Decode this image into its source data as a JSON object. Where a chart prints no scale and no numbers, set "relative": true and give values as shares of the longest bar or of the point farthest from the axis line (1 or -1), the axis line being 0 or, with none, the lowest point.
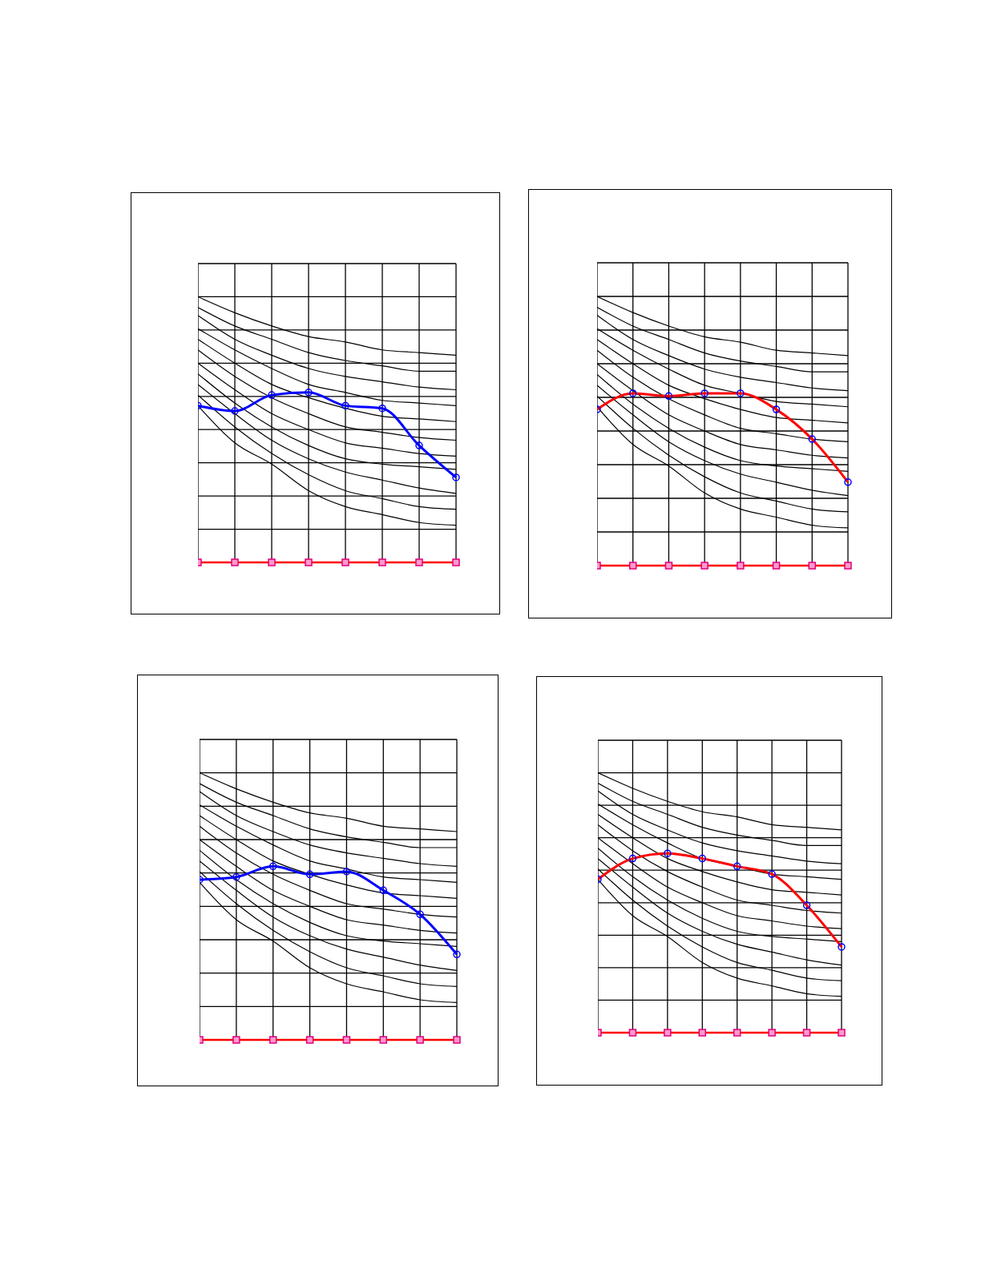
{
  "chart_data": [
    {
      "type": "line",
      "relative": true,
      "grid": true,
      "line_style": "solid",
      "categories": [
        null,
        null,
        null,
        null,
        null,
        null,
        null,
        null
      ],
      "series": [
        {
          "color": "#000000",
          "marker": "none",
          "values": [
            1.0,
            0.94,
            0.89,
            0.85,
            0.83,
            0.8,
            0.79,
            0.78
          ]
        },
        {
          "color": "#000000",
          "marker": "none",
          "values": [
            0.96,
            0.89,
            0.84,
            0.79,
            0.76,
            0.74,
            0.72,
            0.72
          ]
        },
        {
          "color": "#000000",
          "marker": "none",
          "values": [
            0.93,
            0.84,
            0.78,
            0.73,
            0.7,
            0.68,
            0.66,
            0.65
          ]
        },
        {
          "color": "#000000",
          "marker": "none",
          "values": [
            0.88,
            0.8,
            0.73,
            0.67,
            0.64,
            0.61,
            0.6,
            0.59
          ]
        },
        {
          "color": "#000000",
          "marker": "none",
          "values": [
            0.84,
            0.75,
            0.67,
            0.62,
            0.58,
            0.55,
            0.54,
            0.53
          ]
        },
        {
          "color": "#000000",
          "marker": "none",
          "values": [
            0.8,
            0.7,
            0.62,
            0.56,
            0.51,
            0.49,
            0.47,
            0.46
          ]
        },
        {
          "color": "#000000",
          "marker": "none",
          "values": [
            0.75,
            0.65,
            0.56,
            0.5,
            0.45,
            0.43,
            0.41,
            0.4
          ]
        },
        {
          "color": "#000000",
          "marker": "none",
          "values": [
            0.71,
            0.6,
            0.51,
            0.44,
            0.39,
            0.37,
            0.36,
            0.35
          ]
        },
        {
          "color": "#000000",
          "marker": "none",
          "values": [
            0.67,
            0.56,
            0.46,
            0.39,
            0.34,
            0.31,
            0.28,
            0.26
          ]
        },
        {
          "color": "#000000",
          "marker": "none",
          "values": [
            0.63,
            0.51,
            0.41,
            0.33,
            0.27,
            0.24,
            0.21,
            0.2
          ]
        },
        {
          "color": "#000000",
          "marker": "none",
          "values": [
            0.59,
            0.45,
            0.37,
            0.27,
            0.21,
            0.18,
            0.15,
            0.14
          ]
        },
        {
          "color": "#ff0000",
          "marker": "square",
          "values": [
            0,
            0,
            0,
            0,
            0,
            0,
            0,
            0
          ]
        },
        {
          "color": "#0000ff",
          "marker": "circle",
          "values": [
            0.59,
            0.57,
            0.63,
            0.64,
            0.59,
            0.58,
            0.44,
            0.32
          ]
        }
      ]
    },
    {
      "type": "line",
      "relative": true,
      "grid": true,
      "line_style": "solid",
      "categories": [
        null,
        null,
        null,
        null,
        null,
        null,
        null,
        null
      ],
      "series": [
        {
          "color": "#000000",
          "marker": "none",
          "values": [
            1.0,
            0.94,
            0.89,
            0.85,
            0.83,
            0.8,
            0.79,
            0.78
          ]
        },
        {
          "color": "#000000",
          "marker": "none",
          "values": [
            0.96,
            0.89,
            0.84,
            0.79,
            0.76,
            0.74,
            0.72,
            0.72
          ]
        },
        {
          "color": "#000000",
          "marker": "none",
          "values": [
            0.93,
            0.84,
            0.78,
            0.73,
            0.7,
            0.68,
            0.66,
            0.65
          ]
        },
        {
          "color": "#000000",
          "marker": "none",
          "values": [
            0.88,
            0.8,
            0.73,
            0.67,
            0.64,
            0.61,
            0.6,
            0.59
          ]
        },
        {
          "color": "#000000",
          "marker": "none",
          "values": [
            0.84,
            0.75,
            0.67,
            0.62,
            0.58,
            0.55,
            0.54,
            0.53
          ]
        },
        {
          "color": "#000000",
          "marker": "none",
          "values": [
            0.8,
            0.7,
            0.62,
            0.56,
            0.51,
            0.49,
            0.47,
            0.46
          ]
        },
        {
          "color": "#000000",
          "marker": "none",
          "values": [
            0.75,
            0.65,
            0.56,
            0.5,
            0.45,
            0.43,
            0.41,
            0.4
          ]
        },
        {
          "color": "#000000",
          "marker": "none",
          "values": [
            0.71,
            0.6,
            0.51,
            0.44,
            0.39,
            0.37,
            0.36,
            0.35
          ]
        },
        {
          "color": "#000000",
          "marker": "none",
          "values": [
            0.67,
            0.56,
            0.46,
            0.39,
            0.34,
            0.31,
            0.28,
            0.26
          ]
        },
        {
          "color": "#000000",
          "marker": "none",
          "values": [
            0.63,
            0.51,
            0.41,
            0.33,
            0.27,
            0.24,
            0.21,
            0.2
          ]
        },
        {
          "color": "#000000",
          "marker": "none",
          "values": [
            0.59,
            0.45,
            0.37,
            0.27,
            0.21,
            0.18,
            0.15,
            0.14
          ]
        },
        {
          "color": "#ff0000",
          "marker": "square",
          "values": [
            0,
            0,
            0,
            0,
            0,
            0,
            0,
            0
          ]
        },
        {
          "color": "#ff0000",
          "marker": "circle",
          "values": [
            0.58,
            0.64,
            0.63,
            0.64,
            0.64,
            0.58,
            0.47,
            0.31
          ]
        }
      ]
    },
    {
      "type": "line",
      "relative": true,
      "grid": true,
      "line_style": "solid",
      "categories": [
        null,
        null,
        null,
        null,
        null,
        null,
        null,
        null
      ],
      "series": [
        {
          "color": "#000000",
          "marker": "none",
          "values": [
            1.0,
            0.94,
            0.89,
            0.85,
            0.83,
            0.8,
            0.79,
            0.78
          ]
        },
        {
          "color": "#000000",
          "marker": "none",
          "values": [
            0.96,
            0.89,
            0.84,
            0.79,
            0.76,
            0.74,
            0.72,
            0.72
          ]
        },
        {
          "color": "#000000",
          "marker": "none",
          "values": [
            0.93,
            0.84,
            0.78,
            0.73,
            0.7,
            0.68,
            0.66,
            0.65
          ]
        },
        {
          "color": "#000000",
          "marker": "none",
          "values": [
            0.88,
            0.8,
            0.73,
            0.67,
            0.64,
            0.61,
            0.6,
            0.59
          ]
        },
        {
          "color": "#000000",
          "marker": "none",
          "values": [
            0.84,
            0.75,
            0.67,
            0.62,
            0.58,
            0.55,
            0.54,
            0.53
          ]
        },
        {
          "color": "#000000",
          "marker": "none",
          "values": [
            0.8,
            0.7,
            0.62,
            0.56,
            0.51,
            0.49,
            0.47,
            0.46
          ]
        },
        {
          "color": "#000000",
          "marker": "none",
          "values": [
            0.75,
            0.65,
            0.56,
            0.5,
            0.45,
            0.43,
            0.41,
            0.4
          ]
        },
        {
          "color": "#000000",
          "marker": "none",
          "values": [
            0.71,
            0.6,
            0.51,
            0.44,
            0.39,
            0.37,
            0.36,
            0.35
          ]
        },
        {
          "color": "#000000",
          "marker": "none",
          "values": [
            0.67,
            0.56,
            0.46,
            0.39,
            0.34,
            0.31,
            0.28,
            0.26
          ]
        },
        {
          "color": "#000000",
          "marker": "none",
          "values": [
            0.63,
            0.51,
            0.41,
            0.33,
            0.27,
            0.24,
            0.21,
            0.2
          ]
        },
        {
          "color": "#000000",
          "marker": "none",
          "values": [
            0.59,
            0.45,
            0.37,
            0.27,
            0.21,
            0.18,
            0.15,
            0.14
          ]
        },
        {
          "color": "#ff0000",
          "marker": "square",
          "values": [
            0,
            0,
            0,
            0,
            0,
            0,
            0,
            0
          ]
        },
        {
          "color": "#0000ff",
          "marker": "circle",
          "values": [
            0.6,
            0.61,
            0.65,
            0.62,
            0.63,
            0.56,
            0.47,
            0.32
          ]
        }
      ]
    },
    {
      "type": "line",
      "relative": true,
      "grid": true,
      "line_style": "solid",
      "categories": [
        null,
        null,
        null,
        null,
        null,
        null,
        null,
        null
      ],
      "series": [
        {
          "color": "#000000",
          "marker": "none",
          "values": [
            1.0,
            0.94,
            0.89,
            0.85,
            0.83,
            0.8,
            0.79,
            0.78
          ]
        },
        {
          "color": "#000000",
          "marker": "none",
          "values": [
            0.96,
            0.89,
            0.84,
            0.79,
            0.76,
            0.74,
            0.72,
            0.72
          ]
        },
        {
          "color": "#000000",
          "marker": "none",
          "values": [
            0.93,
            0.84,
            0.78,
            0.73,
            0.7,
            0.68,
            0.66,
            0.65
          ]
        },
        {
          "color": "#000000",
          "marker": "none",
          "values": [
            0.88,
            0.8,
            0.73,
            0.67,
            0.64,
            0.61,
            0.6,
            0.59
          ]
        },
        {
          "color": "#000000",
          "marker": "none",
          "values": [
            0.84,
            0.75,
            0.67,
            0.62,
            0.58,
            0.55,
            0.54,
            0.53
          ]
        },
        {
          "color": "#000000",
          "marker": "none",
          "values": [
            0.8,
            0.7,
            0.62,
            0.56,
            0.51,
            0.49,
            0.47,
            0.46
          ]
        },
        {
          "color": "#000000",
          "marker": "none",
          "values": [
            0.75,
            0.65,
            0.56,
            0.5,
            0.45,
            0.43,
            0.41,
            0.4
          ]
        },
        {
          "color": "#000000",
          "marker": "none",
          "values": [
            0.71,
            0.6,
            0.51,
            0.44,
            0.39,
            0.37,
            0.36,
            0.35
          ]
        },
        {
          "color": "#000000",
          "marker": "none",
          "values": [
            0.67,
            0.56,
            0.46,
            0.39,
            0.34,
            0.31,
            0.28,
            0.26
          ]
        },
        {
          "color": "#000000",
          "marker": "none",
          "values": [
            0.63,
            0.51,
            0.41,
            0.33,
            0.27,
            0.24,
            0.21,
            0.2
          ]
        },
        {
          "color": "#000000",
          "marker": "none",
          "values": [
            0.59,
            0.45,
            0.37,
            0.27,
            0.21,
            0.18,
            0.15,
            0.14
          ]
        },
        {
          "color": "#ff0000",
          "marker": "square",
          "values": [
            0,
            0,
            0,
            0,
            0,
            0,
            0,
            0
          ]
        },
        {
          "color": "#ff0000",
          "marker": "circle",
          "values": [
            0.59,
            0.67,
            0.69,
            0.67,
            0.64,
            0.61,
            0.49,
            0.33
          ]
        }
      ]
    }
  ]
}
